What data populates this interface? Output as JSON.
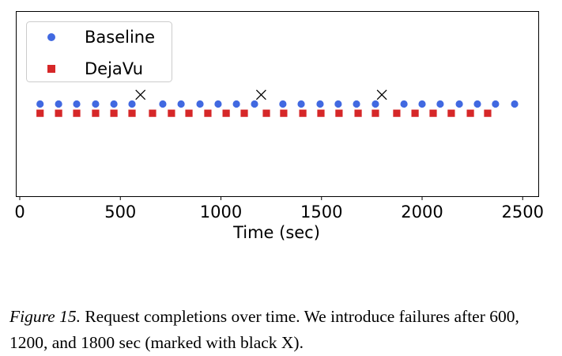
{
  "chart_data": {
    "type": "scatter",
    "xlabel": "Time (sec)",
    "ylabel": "",
    "xlim": [
      -20,
      2580
    ],
    "ylim": [
      0,
      2
    ],
    "xticks": [
      0,
      500,
      1000,
      1500,
      2000,
      2500
    ],
    "yticks_visible": false,
    "grid": false,
    "legend": "top-left",
    "series": [
      {
        "name": "Baseline",
        "marker": "circle",
        "color": "#4169e1",
        "y": 1.0,
        "x": [
          101,
          193,
          283,
          377,
          468,
          558,
          711,
          802,
          896,
          986,
          1077,
          1167,
          1308,
          1399,
          1493,
          1583,
          1674,
          1768,
          1910,
          2000,
          2090,
          2185,
          2275,
          2365,
          2460
        ]
      },
      {
        "name": "DejaVu",
        "marker": "square",
        "color": "#d62728",
        "y": 0.9,
        "x": [
          101,
          193,
          283,
          377,
          468,
          558,
          660,
          754,
          841,
          935,
          1026,
          1116,
          1226,
          1312,
          1407,
          1497,
          1587,
          1682,
          1768,
          1874,
          1965,
          2055,
          2145,
          2240,
          2326
        ]
      }
    ],
    "failures": {
      "marker": "x",
      "color": "#000000",
      "y": 1.1,
      "x": [
        600,
        1200,
        1800
      ]
    }
  },
  "caption": {
    "label": "Figure 15.",
    "text": " Request completions over time. We introduce failures after 600, 1200, and 1800 sec (marked with black X)."
  }
}
